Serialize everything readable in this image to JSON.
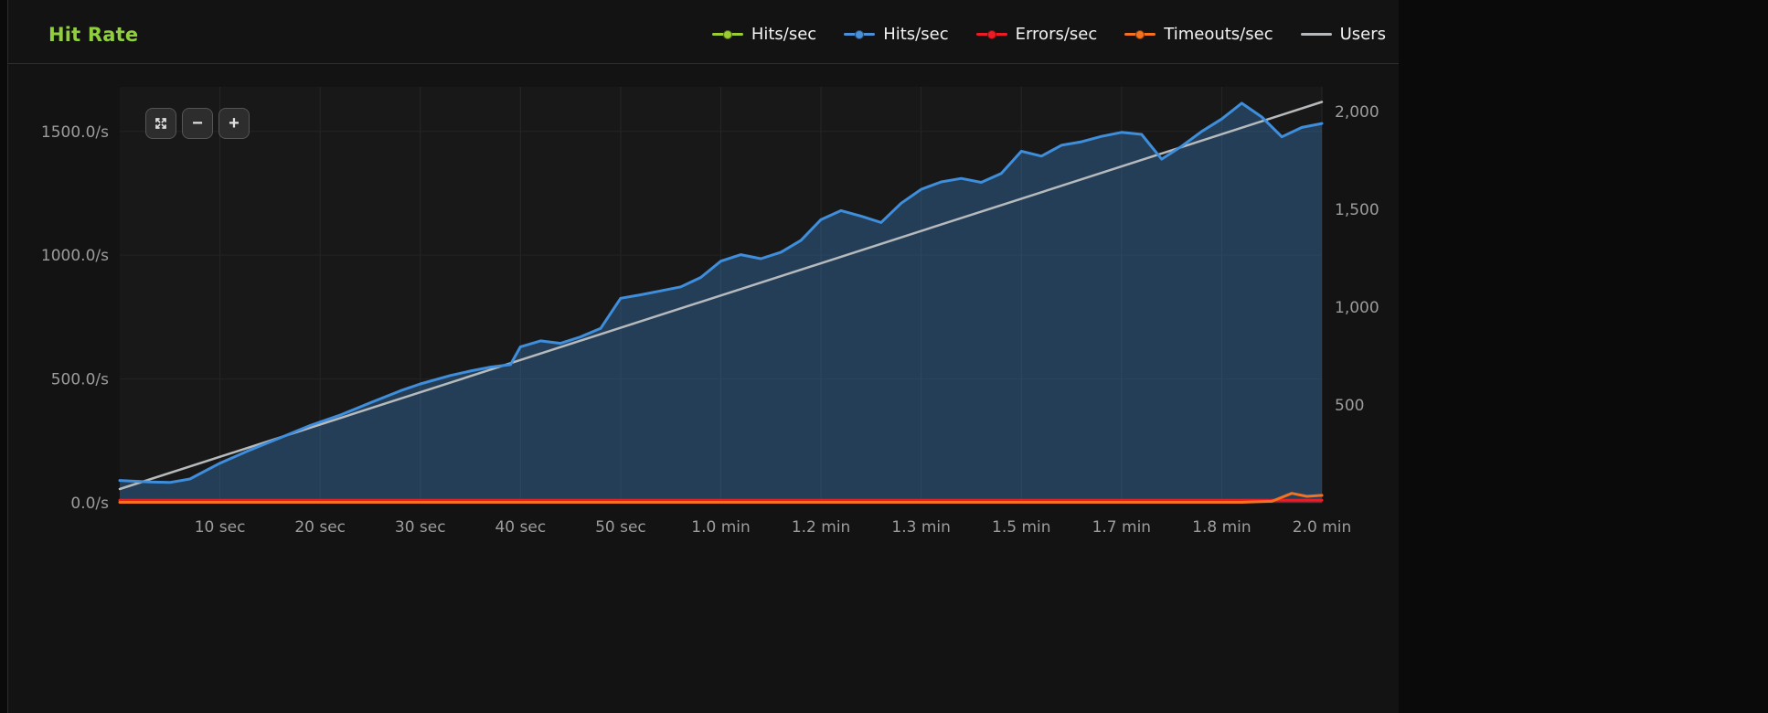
{
  "panel": {
    "title": "Hit Rate"
  },
  "legend": {
    "items": [
      {
        "label": "Hits/sec",
        "color": "#9acd32",
        "dot": true
      },
      {
        "label": "Hits/sec",
        "color": "#4a90d9",
        "dot": true
      },
      {
        "label": "Errors/sec",
        "color": "#ed1c24",
        "dot": true
      },
      {
        "label": "Timeouts/sec",
        "color": "#f4711f",
        "dot": true
      },
      {
        "label": "Users",
        "color": "#b6babd",
        "dot": false
      }
    ]
  },
  "zoom_controls": {
    "zoom_out_label": "−",
    "zoom_in_label": "+"
  },
  "chart_data": {
    "type": "area",
    "title": "Hit Rate",
    "xlim": [
      0,
      120
    ],
    "x_ticks": [
      {
        "t": 10,
        "label": "10 sec"
      },
      {
        "t": 20,
        "label": "20 sec"
      },
      {
        "t": 30,
        "label": "30 sec"
      },
      {
        "t": 40,
        "label": "40 sec"
      },
      {
        "t": 50,
        "label": "50 sec"
      },
      {
        "t": 60,
        "label": "1.0 min"
      },
      {
        "t": 70,
        "label": "1.2 min"
      },
      {
        "t": 80,
        "label": "1.3 min"
      },
      {
        "t": 90,
        "label": "1.5 min"
      },
      {
        "t": 100,
        "label": "1.7 min"
      },
      {
        "t": 110,
        "label": "1.8 min"
      },
      {
        "t": 120,
        "label": "2.0 min"
      }
    ],
    "left_axis": {
      "lim": [
        0,
        1680
      ],
      "ticks": [
        {
          "v": 0,
          "label": "0.0/s"
        },
        {
          "v": 500,
          "label": "500.0/s"
        },
        {
          "v": 1000,
          "label": "1000.0/s"
        },
        {
          "v": 1500,
          "label": "1500.0/s"
        }
      ]
    },
    "right_axis": {
      "lim": [
        0,
        2125
      ],
      "ticks": [
        {
          "v": 500,
          "label": "500"
        },
        {
          "v": 1000,
          "label": "1,000"
        },
        {
          "v": 1500,
          "label": "1,500"
        },
        {
          "v": 2000,
          "label": "2,000"
        }
      ]
    },
    "series": [
      {
        "name": "Users",
        "color": "#b6babd",
        "axis": "right",
        "width": 2.5,
        "area": false,
        "points": [
          [
            0,
            70
          ],
          [
            120,
            2048
          ]
        ]
      },
      {
        "name": "Hits/sec",
        "color": "#9acd32",
        "axis": "left",
        "width": 3,
        "area": false,
        "points": []
      },
      {
        "name": "Hits/sec",
        "color": "#3f8edc",
        "axis": "left",
        "width": 3,
        "area": true,
        "points": [
          [
            0,
            90
          ],
          [
            3,
            84
          ],
          [
            5,
            82
          ],
          [
            7,
            96
          ],
          [
            10,
            160
          ],
          [
            13,
            213
          ],
          [
            16,
            262
          ],
          [
            19,
            312
          ],
          [
            22,
            354
          ],
          [
            25,
            404
          ],
          [
            28,
            452
          ],
          [
            30,
            480
          ],
          [
            33,
            514
          ],
          [
            35,
            532
          ],
          [
            37,
            548
          ],
          [
            39,
            558
          ],
          [
            40,
            630
          ],
          [
            42,
            654
          ],
          [
            44,
            644
          ],
          [
            46,
            670
          ],
          [
            48,
            704
          ],
          [
            50,
            826
          ],
          [
            52,
            840
          ],
          [
            54,
            856
          ],
          [
            56,
            872
          ],
          [
            58,
            910
          ],
          [
            60,
            976
          ],
          [
            62,
            1002
          ],
          [
            64,
            986
          ],
          [
            66,
            1012
          ],
          [
            68,
            1060
          ],
          [
            70,
            1144
          ],
          [
            72,
            1180
          ],
          [
            74,
            1158
          ],
          [
            76,
            1132
          ],
          [
            78,
            1210
          ],
          [
            80,
            1266
          ],
          [
            82,
            1296
          ],
          [
            84,
            1310
          ],
          [
            86,
            1294
          ],
          [
            88,
            1330
          ],
          [
            90,
            1420
          ],
          [
            92,
            1400
          ],
          [
            94,
            1444
          ],
          [
            96,
            1458
          ],
          [
            98,
            1480
          ],
          [
            100,
            1496
          ],
          [
            102,
            1488
          ],
          [
            104,
            1388
          ],
          [
            106,
            1440
          ],
          [
            108,
            1500
          ],
          [
            110,
            1550
          ],
          [
            112,
            1614
          ],
          [
            114,
            1558
          ],
          [
            116,
            1478
          ],
          [
            118,
            1516
          ],
          [
            120,
            1532
          ]
        ]
      },
      {
        "name": "Errors/sec",
        "color": "#ed1c24",
        "axis": "left",
        "width": 3,
        "area": false,
        "points": [
          [
            0,
            10
          ],
          [
            120,
            10
          ]
        ]
      },
      {
        "name": "Timeouts/sec",
        "color": "#f4711f",
        "axis": "left",
        "width": 3,
        "area": false,
        "points": [
          [
            0,
            2
          ],
          [
            112,
            2
          ],
          [
            115,
            6
          ],
          [
            117,
            38
          ],
          [
            118.5,
            26
          ],
          [
            120,
            30
          ]
        ]
      }
    ]
  }
}
